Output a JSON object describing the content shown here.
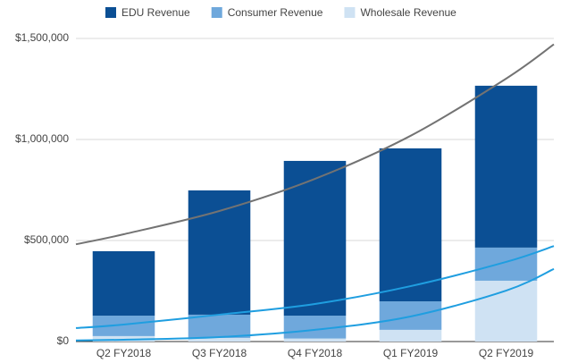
{
  "chart_data": {
    "type": "bar",
    "stacked": true,
    "categories": [
      "Q2 FY2018",
      "Q3 FY2018",
      "Q4 FY2018",
      "Q1 FY2019",
      "Q2 FY2019"
    ],
    "series": [
      {
        "name": "EDU Revenue",
        "color": "#0b4f94",
        "values": [
          319000,
          615000,
          766000,
          757000,
          801000
        ]
      },
      {
        "name": "Consumer Revenue",
        "color": "#6fa8dc",
        "values": [
          101000,
          115000,
          113000,
          141000,
          164000
        ]
      },
      {
        "name": "Wholesale Revenue",
        "color": "#cfe2f3",
        "values": [
          27000,
          18000,
          15000,
          58000,
          301000
        ]
      }
    ],
    "stack_order": [
      2,
      1,
      0
    ],
    "trendlines": [
      {
        "color": "#737373",
        "values": [
          531000,
          646000,
          805000,
          1018000,
          1301000
        ]
      },
      {
        "color": "#1f9ee0",
        "values": [
          84000,
          133000,
          186000,
          274000,
          394000
        ]
      },
      {
        "color": "#1f9ee0",
        "values": [
          9000,
          22000,
          58000,
          124000,
          252000
        ]
      }
    ],
    "ylim": [
      0,
      1500000
    ],
    "yticks": [
      {
        "value": 0,
        "label": "$0"
      },
      {
        "value": 500000,
        "label": "$500,000"
      },
      {
        "value": 1000000,
        "label": "$1,000,000"
      },
      {
        "value": 1500000,
        "label": "$1,500,000"
      }
    ],
    "grid": true,
    "legend": "top"
  }
}
